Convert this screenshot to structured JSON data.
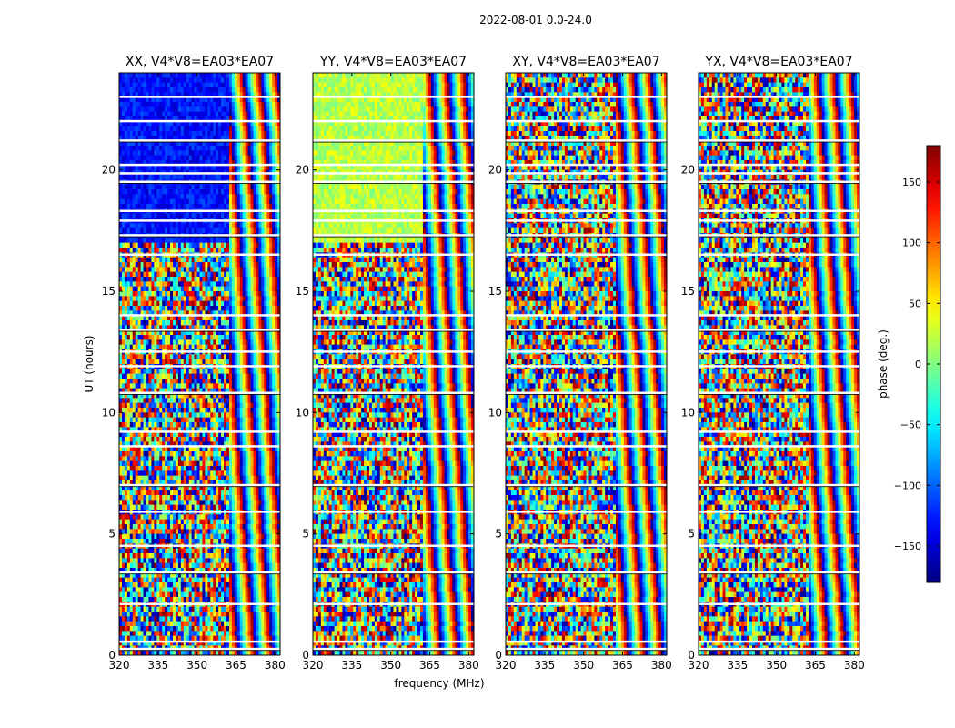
{
  "figure": {
    "suptitle": "2022-08-01 0.0-24.0"
  },
  "chart_data": {
    "type": "heatmap",
    "ylabel": "UT (hours)",
    "xlabel": "frequency (MHz)",
    "xlim": [
      320,
      382
    ],
    "ylim": [
      0,
      24
    ],
    "x_ticks": [
      320,
      335,
      350,
      365,
      380
    ],
    "y_ticks": [
      0,
      5,
      10,
      15,
      20
    ],
    "colormap": "jet",
    "panels": [
      {
        "title": "XX, V4*V8=EA03*EA07",
        "pol": "XX",
        "base_phase": -130
      },
      {
        "title": "YY, V4*V8=EA03*EA07",
        "pol": "YY",
        "base_phase": 20
      },
      {
        "title": "XY, V4*V8=EA03*EA07",
        "pol": "XY",
        "base_phase": 150
      },
      {
        "title": "YX, V4*V8=EA03*EA07",
        "pol": "YX",
        "base_phase": -20
      }
    ],
    "gaps_hours": [
      0.25,
      0.55,
      2.1,
      3.4,
      4.5,
      5.9,
      7.0,
      8.6,
      9.2,
      10.8,
      11.9,
      12.5,
      13.4,
      14.0,
      16.5,
      17.3,
      17.9,
      18.3,
      19.5,
      19.85,
      20.2,
      21.2,
      22.0,
      23.0
    ],
    "colorbar": {
      "label": "phase (deg.)",
      "vmin": -180,
      "vmax": 180,
      "ticks": [
        -150,
        -100,
        -50,
        0,
        50,
        100,
        150
      ],
      "tick_labels": [
        "−150",
        "−100",
        "−50",
        "0",
        "50",
        "100",
        "150"
      ]
    }
  }
}
